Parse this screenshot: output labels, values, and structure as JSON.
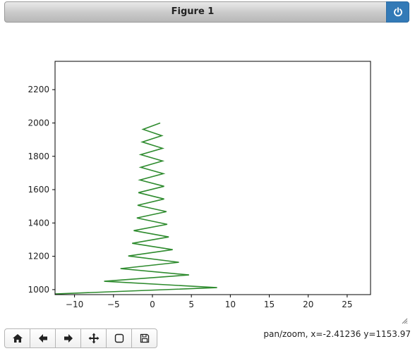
{
  "window": {
    "title": "Figure 1",
    "power_icon": "power-icon"
  },
  "toolbar": {
    "buttons": [
      {
        "name": "home-button",
        "icon": "home-icon"
      },
      {
        "name": "back-button",
        "icon": "arrow-left-icon"
      },
      {
        "name": "forward-button",
        "icon": "arrow-right-icon"
      },
      {
        "name": "pan-button",
        "icon": "move-icon"
      },
      {
        "name": "zoom-button",
        "icon": "square-icon"
      },
      {
        "name": "save-button",
        "icon": "floppy-icon"
      }
    ]
  },
  "status": {
    "text": "pan/zoom, x=-2.41236 y=1153.97"
  },
  "chart_data": {
    "type": "line",
    "xlim": [
      -12.5,
      28
    ],
    "ylim": [
      970,
      2370
    ],
    "xticks": [
      -10,
      -5,
      0,
      5,
      10,
      15,
      20,
      25
    ],
    "xtick_labels": [
      "−10",
      "−5",
      "0",
      "5",
      "10",
      "15",
      "20",
      "25"
    ],
    "yticks": [
      1000,
      1200,
      1400,
      1600,
      1800,
      2000,
      2200
    ],
    "ytick_labels": [
      "1000",
      "1200",
      "1400",
      "1600",
      "1800",
      "2000",
      "2200"
    ],
    "grid": false,
    "series": [
      {
        "color": "#2e8b2e",
        "points": [
          [
            1.0,
            2000
          ],
          [
            -1.2,
            1962
          ],
          [
            1.2,
            1924
          ],
          [
            -1.3,
            1886
          ],
          [
            1.3,
            1848
          ],
          [
            -1.5,
            1810
          ],
          [
            1.3,
            1772
          ],
          [
            -1.5,
            1734
          ],
          [
            1.4,
            1696
          ],
          [
            -1.6,
            1658
          ],
          [
            1.5,
            1620
          ],
          [
            -1.8,
            1582
          ],
          [
            1.5,
            1544
          ],
          [
            -1.9,
            1506
          ],
          [
            1.8,
            1468
          ],
          [
            -2.0,
            1430
          ],
          [
            1.9,
            1392
          ],
          [
            -2.4,
            1354
          ],
          [
            2.1,
            1316
          ],
          [
            -2.6,
            1278
          ],
          [
            2.6,
            1240
          ],
          [
            -3.1,
            1202
          ],
          [
            3.4,
            1164
          ],
          [
            -4.1,
            1126
          ],
          [
            4.7,
            1088
          ],
          [
            -6.2,
            1050
          ],
          [
            8.3,
            1012
          ],
          [
            -12.5,
            974
          ]
        ]
      }
    ]
  }
}
